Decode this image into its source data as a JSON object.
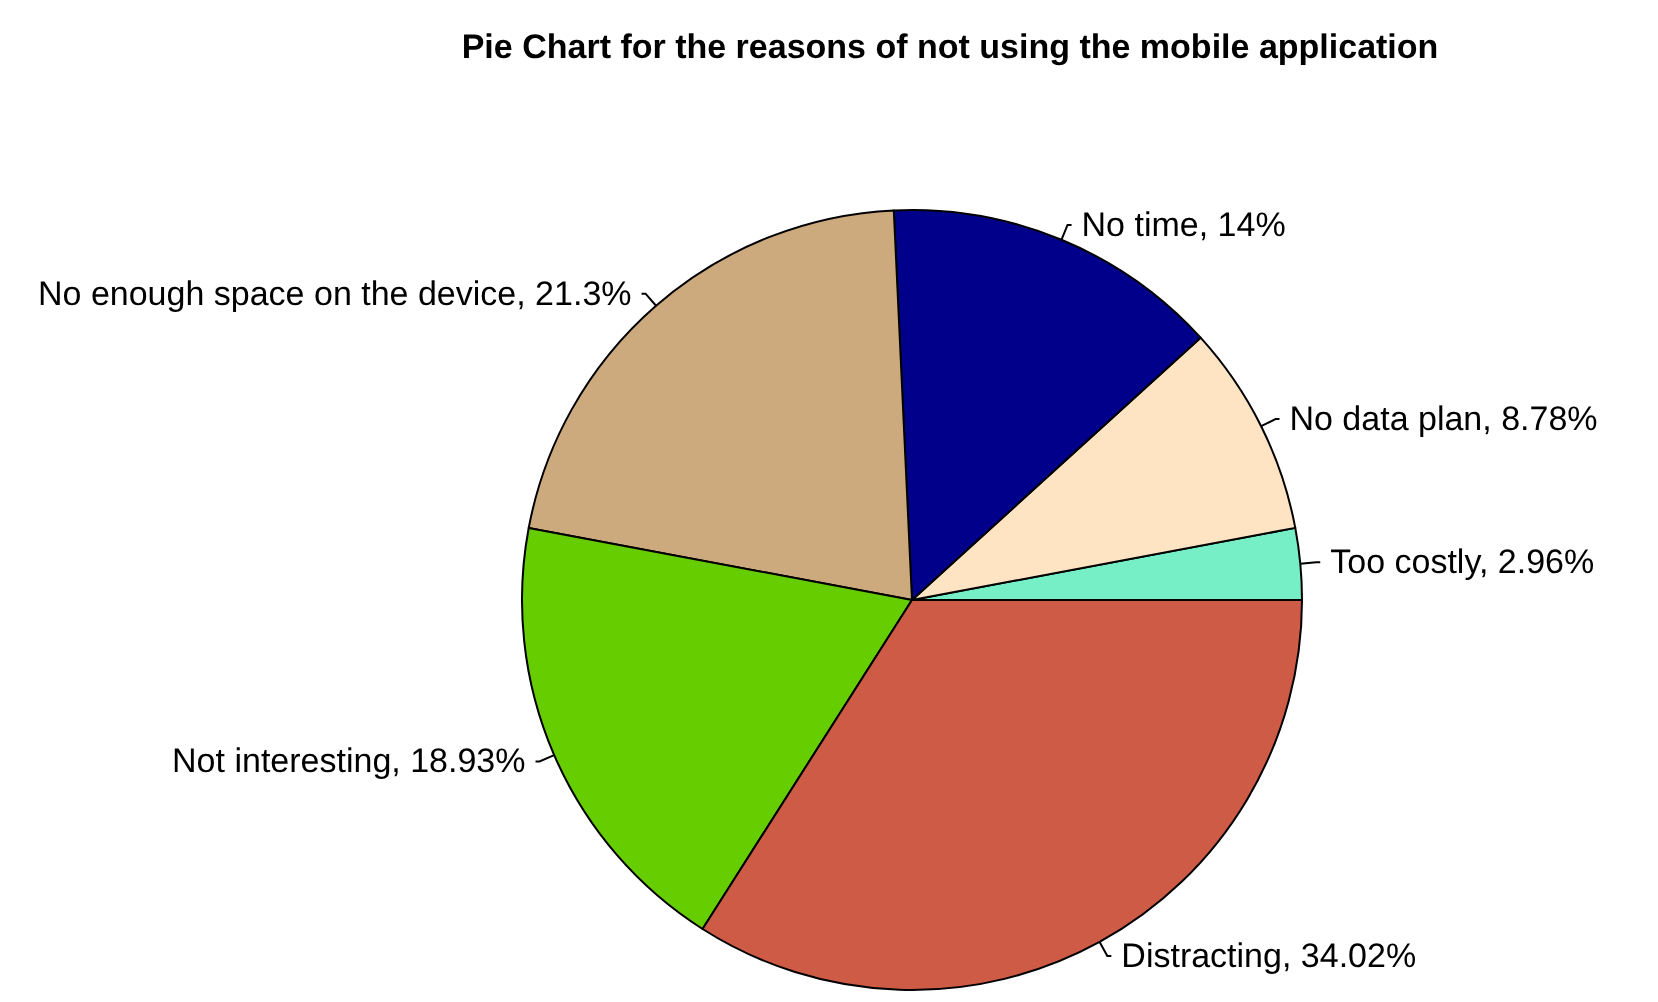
{
  "chart_data": {
    "type": "pie",
    "title": "Pie Chart for the reasons of not using the mobile application",
    "categories": [
      "Too costly",
      "No data plan",
      "No time",
      "No enough space on the device",
      "Not interesting",
      "Distracting"
    ],
    "values": [
      2.96,
      8.78,
      14,
      21.3,
      18.93,
      34.02
    ],
    "value_labels": [
      "2.96%",
      "8.78%",
      "14%",
      "21.3%",
      "18.93%",
      "34.02%"
    ],
    "colors": [
      "#76eec6",
      "#ffe4c4",
      "#00008b",
      "#cdaa7d",
      "#66cd00",
      "#cd5b45"
    ],
    "legend": false
  }
}
